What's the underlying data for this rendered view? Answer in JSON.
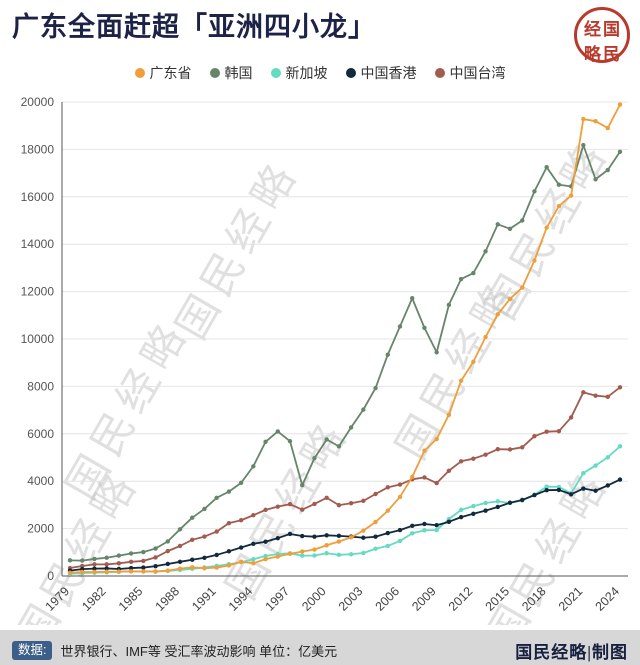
{
  "header": {
    "title": "广东全面赶超「亚洲四小龙」",
    "seal_chars": [
      "经",
      "国",
      "略",
      "民"
    ]
  },
  "legend": [
    {
      "label": "广东省",
      "color": "#ef9e3c"
    },
    {
      "label": "韩国",
      "color": "#66856a"
    },
    {
      "label": "新加坡",
      "color": "#62dbc1"
    },
    {
      "label": "中国香港",
      "color": "#12283c"
    },
    {
      "label": "中国台湾",
      "color": "#a25b4f"
    }
  ],
  "watermark": "国民经略",
  "chart_data": {
    "type": "line",
    "title": "广东全面赶超「亚洲四小龙」",
    "unit": "亿美元",
    "grid": true,
    "legend_position": "top",
    "ylim": [
      0,
      20000
    ],
    "y_ticks": [
      0,
      2000,
      4000,
      6000,
      8000,
      10000,
      12000,
      14000,
      16000,
      18000,
      20000
    ],
    "x": [
      1979,
      1980,
      1981,
      1982,
      1983,
      1984,
      1985,
      1986,
      1987,
      1988,
      1989,
      1990,
      1991,
      1992,
      1993,
      1994,
      1995,
      1996,
      1997,
      1998,
      1999,
      2000,
      2001,
      2002,
      2003,
      2004,
      2005,
      2006,
      2007,
      2008,
      2009,
      2010,
      2011,
      2012,
      2013,
      2014,
      2015,
      2016,
      2017,
      2018,
      2019,
      2020,
      2021,
      2022,
      2023,
      2024
    ],
    "x_tick_labels": [
      "1979",
      "1982",
      "1985",
      "1988",
      "1991",
      "1994",
      "1997",
      "2000",
      "2003",
      "2006",
      "2009",
      "2012",
      "2015",
      "2018",
      "2021",
      "2024"
    ],
    "series": [
      {
        "name": "广东省",
        "color": "#ef9e3c",
        "values": [
          135,
          167,
          170,
          179,
          186,
          198,
          196,
          193,
          227,
          310,
          366,
          326,
          356,
          444,
          602,
          536,
          711,
          822,
          938,
          1030,
          1117,
          1297,
          1454,
          1631,
          1914,
          2279,
          2754,
          3336,
          4180,
          5290,
          5780,
          6800,
          8240,
          9040,
          10080,
          11040,
          11690,
          12170,
          13310,
          14700,
          15610,
          16050,
          19280,
          19190,
          18900,
          19890
        ]
      },
      {
        "name": "韩国",
        "color": "#66856a",
        "values": [
          660,
          650,
          720,
          770,
          860,
          950,
          1010,
          1160,
          1460,
          1970,
          2460,
          2830,
          3300,
          3560,
          3930,
          4630,
          5660,
          6100,
          5690,
          3830,
          4970,
          5760,
          5470,
          6270,
          7020,
          7930,
          9340,
          10530,
          11720,
          10470,
          9440,
          11440,
          12530,
          12780,
          13700,
          14840,
          14650,
          15000,
          16230,
          17250,
          16510,
          16440,
          18180,
          16740,
          17130,
          17900
        ]
      },
      {
        "name": "新加坡",
        "color": "#62dbc1",
        "values": [
          91,
          120,
          142,
          156,
          175,
          194,
          186,
          184,
          213,
          256,
          304,
          361,
          427,
          497,
          581,
          709,
          843,
          926,
          957,
          857,
          864,
          960,
          893,
          917,
          970,
          1150,
          1270,
          1480,
          1800,
          1930,
          1940,
          2400,
          2790,
          2950,
          3080,
          3150,
          3080,
          3190,
          3430,
          3770,
          3760,
          3490,
          4340,
          4660,
          5010,
          5470
        ]
      },
      {
        "name": "中国香港",
        "color": "#12283c",
        "values": [
          225,
          289,
          310,
          320,
          296,
          335,
          355,
          416,
          508,
          599,
          686,
          769,
          889,
          1042,
          1202,
          1359,
          1446,
          1596,
          1774,
          1687,
          1658,
          1716,
          1694,
          1663,
          1614,
          1657,
          1810,
          1937,
          2117,
          2195,
          2143,
          2286,
          2484,
          2626,
          2758,
          2912,
          3093,
          3209,
          3413,
          3620,
          3632,
          3448,
          3691,
          3597,
          3821,
          4070
        ]
      },
      {
        "name": "中国台湾",
        "color": "#a25b4f",
        "values": [
          337,
          423,
          491,
          491,
          536,
          598,
          636,
          784,
          1050,
          1266,
          1527,
          1663,
          1874,
          2230,
          2353,
          2564,
          2790,
          2925,
          3030,
          2800,
          3040,
          3300,
          2990,
          3070,
          3170,
          3460,
          3740,
          3860,
          4080,
          4160,
          3920,
          4440,
          4840,
          4950,
          5120,
          5350,
          5340,
          5430,
          5900,
          6090,
          6110,
          6690,
          7750,
          7610,
          7560,
          7960
        ]
      }
    ]
  },
  "footer": {
    "source_label": "数据:",
    "source_text": "世界银行、IMF等 受汇率波动影响 单位：亿美元",
    "credit": "国民经略|制图"
  }
}
